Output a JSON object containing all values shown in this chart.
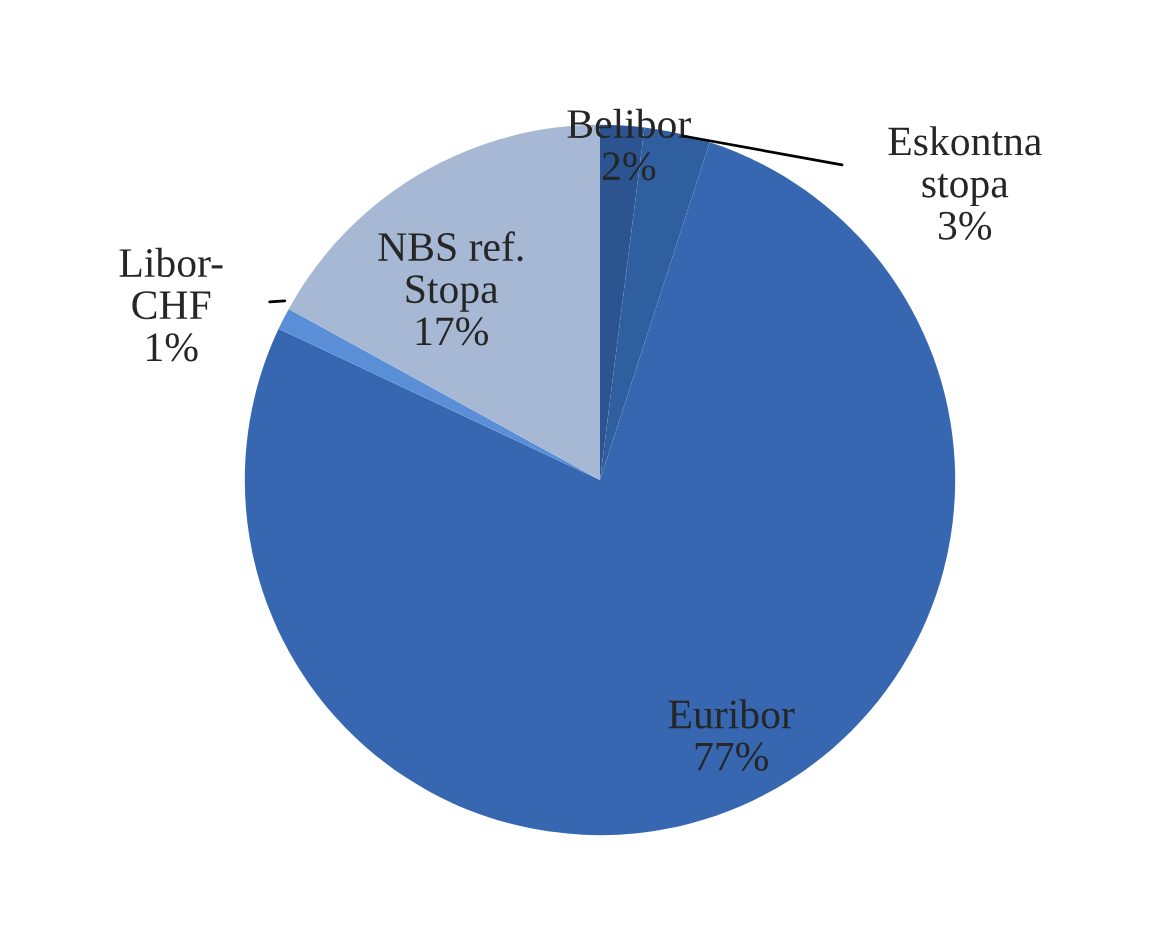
{
  "chart_data": {
    "type": "pie",
    "categories": [
      "Belibor",
      "Eskontna\nstopa",
      "Euribor",
      "Libor-\nCHF",
      "NBS ref.\nStopa"
    ],
    "values": [
      2,
      3,
      77,
      1,
      17
    ],
    "value_labels": [
      "2%",
      "3%",
      "77%",
      "1%",
      "17%"
    ],
    "colors": [
      "#2b5490",
      "#305f9f",
      "#3667b0",
      "#5a8fd8",
      "#a7b8d4"
    ],
    "legend": false
  }
}
